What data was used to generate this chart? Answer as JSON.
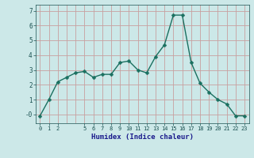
{
  "x": [
    0,
    1,
    2,
    3,
    4,
    5,
    6,
    7,
    8,
    9,
    10,
    11,
    12,
    13,
    14,
    15,
    16,
    17,
    18,
    19,
    20,
    21,
    22,
    23
  ],
  "y": [
    -0.1,
    1.0,
    2.2,
    2.5,
    2.8,
    2.9,
    2.5,
    2.7,
    2.7,
    3.5,
    3.6,
    3.0,
    2.8,
    3.9,
    4.7,
    6.7,
    6.7,
    3.5,
    2.1,
    1.5,
    1.0,
    0.7,
    -0.1,
    -0.1
  ],
  "line_color": "#1a7060",
  "marker": "D",
  "marker_size": 2.5,
  "bg_color": "#cce8e8",
  "grid_color_major": "#c8a0a0",
  "grid_color_minor": "#d8b8b8",
  "xlabel": "Humidex (Indice chaleur)",
  "xlim": [
    -0.5,
    23.5
  ],
  "ylim": [
    -0.6,
    7.4
  ],
  "xticks": [
    0,
    1,
    2,
    5,
    6,
    7,
    8,
    9,
    10,
    11,
    12,
    13,
    14,
    15,
    16,
    17,
    18,
    19,
    20,
    21,
    22,
    23
  ],
  "yticks": [
    0,
    1,
    2,
    3,
    4,
    5,
    6,
    7
  ],
  "ytick_labels": [
    "-0",
    "1",
    "2",
    "3",
    "4",
    "5",
    "6",
    "7"
  ]
}
